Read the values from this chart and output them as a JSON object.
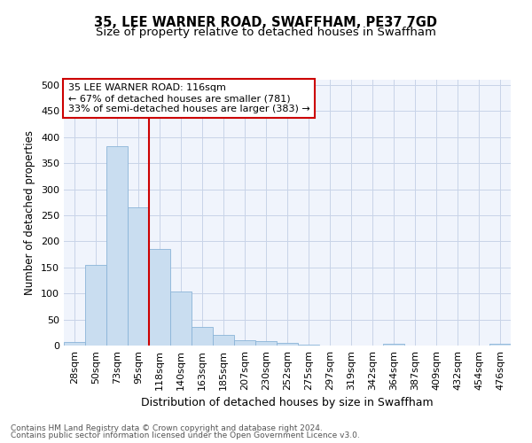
{
  "title": "35, LEE WARNER ROAD, SWAFFHAM, PE37 7GD",
  "subtitle": "Size of property relative to detached houses in Swaffham",
  "xlabel": "Distribution of detached houses by size in Swaffham",
  "ylabel": "Number of detached properties",
  "categories": [
    "28sqm",
    "50sqm",
    "73sqm",
    "95sqm",
    "118sqm",
    "140sqm",
    "163sqm",
    "185sqm",
    "207sqm",
    "230sqm",
    "252sqm",
    "275sqm",
    "297sqm",
    "319sqm",
    "342sqm",
    "364sqm",
    "387sqm",
    "409sqm",
    "432sqm",
    "454sqm",
    "476sqm"
  ],
  "values": [
    6,
    155,
    383,
    265,
    185,
    103,
    36,
    21,
    11,
    8,
    5,
    2,
    0,
    0,
    0,
    4,
    0,
    0,
    0,
    0,
    4
  ],
  "bar_color": "#c9ddf0",
  "bar_edge_color": "#8ab4d8",
  "vline_color": "#cc0000",
  "vline_x": 4,
  "annotation_line1": "35 LEE WARNER ROAD: 116sqm",
  "annotation_line2": "← 67% of detached houses are smaller (781)",
  "annotation_line3": "33% of semi-detached houses are larger (383) →",
  "annotation_box_facecolor": "#ffffff",
  "annotation_box_edgecolor": "#cc0000",
  "ylim": [
    0,
    510
  ],
  "yticks": [
    0,
    50,
    100,
    150,
    200,
    250,
    300,
    350,
    400,
    450,
    500
  ],
  "grid_color": "#c8d4e8",
  "bg_color": "#f0f4fc",
  "footer_line1": "Contains HM Land Registry data © Crown copyright and database right 2024.",
  "footer_line2": "Contains public sector information licensed under the Open Government Licence v3.0.",
  "title_fontsize": 10.5,
  "subtitle_fontsize": 9.5,
  "xlabel_fontsize": 9,
  "ylabel_fontsize": 8.5,
  "tick_fontsize": 8,
  "annotation_fontsize": 8,
  "footer_fontsize": 6.5
}
